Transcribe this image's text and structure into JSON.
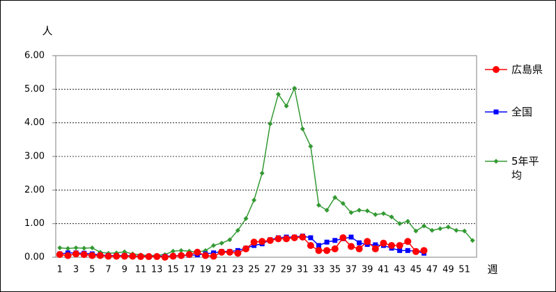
{
  "chart_data": {
    "type": "line",
    "y_unit": "人",
    "x_unit": "週",
    "categories": [
      "1",
      null,
      "3",
      null,
      "5",
      null,
      "7",
      null,
      "9",
      null,
      "11",
      null,
      "13",
      null,
      "15",
      null,
      "17",
      null,
      "19",
      null,
      "21",
      null,
      "23",
      null,
      "25",
      null,
      "27",
      null,
      "29",
      null,
      "31",
      null,
      "33",
      null,
      "35",
      null,
      "37",
      null,
      "39",
      null,
      "41",
      null,
      "43",
      null,
      "45",
      null,
      "47",
      null,
      "49",
      null,
      "51",
      null
    ],
    "ylim": [
      0,
      6
    ],
    "yticks": [
      {
        "value": 0,
        "label": "0.00"
      },
      {
        "value": 1,
        "label": "1.00"
      },
      {
        "value": 2,
        "label": "2.00"
      },
      {
        "value": 3,
        "label": "3.00"
      },
      {
        "value": 4,
        "label": "4.00"
      },
      {
        "value": 5,
        "label": "5.00"
      },
      {
        "value": 6,
        "label": "6.00"
      }
    ],
    "grid": true,
    "series": [
      {
        "name": "広島県",
        "color": "#ff0000",
        "marker": "circle",
        "values": [
          0.08,
          0.05,
          0.1,
          0.08,
          0.05,
          0.05,
          0.03,
          0.03,
          0.03,
          0.03,
          0.02,
          0.02,
          0.02,
          0.0,
          0.03,
          0.05,
          0.08,
          0.15,
          0.05,
          0.03,
          0.15,
          0.15,
          0.12,
          0.25,
          0.45,
          0.47,
          0.5,
          0.55,
          0.55,
          0.58,
          0.6,
          0.35,
          0.2,
          0.2,
          0.25,
          0.58,
          0.32,
          0.25,
          0.47,
          0.25,
          0.42,
          0.35,
          0.35,
          0.47,
          0.17,
          0.2,
          null,
          null,
          null,
          null,
          null,
          null
        ]
      },
      {
        "name": "全国",
        "color": "#0000ff",
        "marker": "square",
        "values": [
          0.1,
          0.13,
          0.13,
          0.12,
          0.1,
          0.07,
          0.05,
          0.05,
          0.05,
          0.04,
          0.03,
          0.03,
          0.03,
          0.03,
          0.04,
          0.05,
          0.06,
          0.07,
          0.1,
          0.13,
          0.17,
          0.17,
          0.2,
          0.27,
          0.35,
          0.4,
          0.52,
          0.58,
          0.6,
          0.6,
          0.63,
          0.58,
          0.35,
          0.45,
          0.5,
          0.55,
          0.6,
          0.43,
          0.38,
          0.37,
          0.35,
          0.27,
          0.2,
          0.2,
          0.18,
          0.12,
          null,
          null,
          null,
          null,
          null,
          null
        ]
      },
      {
        "name": "5年平均",
        "color": "#339933",
        "marker": "diamond",
        "values": [
          0.28,
          0.26,
          0.28,
          0.27,
          0.28,
          0.15,
          0.12,
          0.13,
          0.16,
          0.1,
          0.07,
          0.05,
          0.06,
          0.08,
          0.18,
          0.2,
          0.18,
          0.15,
          0.2,
          0.35,
          0.42,
          0.52,
          0.8,
          1.15,
          1.7,
          2.5,
          3.97,
          4.85,
          4.5,
          5.03,
          3.82,
          3.3,
          1.55,
          1.4,
          1.78,
          1.6,
          1.33,
          1.4,
          1.38,
          1.27,
          1.3,
          1.2,
          1.0,
          1.07,
          0.78,
          0.93,
          0.8,
          0.85,
          0.9,
          0.8,
          0.78,
          0.5
        ]
      }
    ]
  }
}
